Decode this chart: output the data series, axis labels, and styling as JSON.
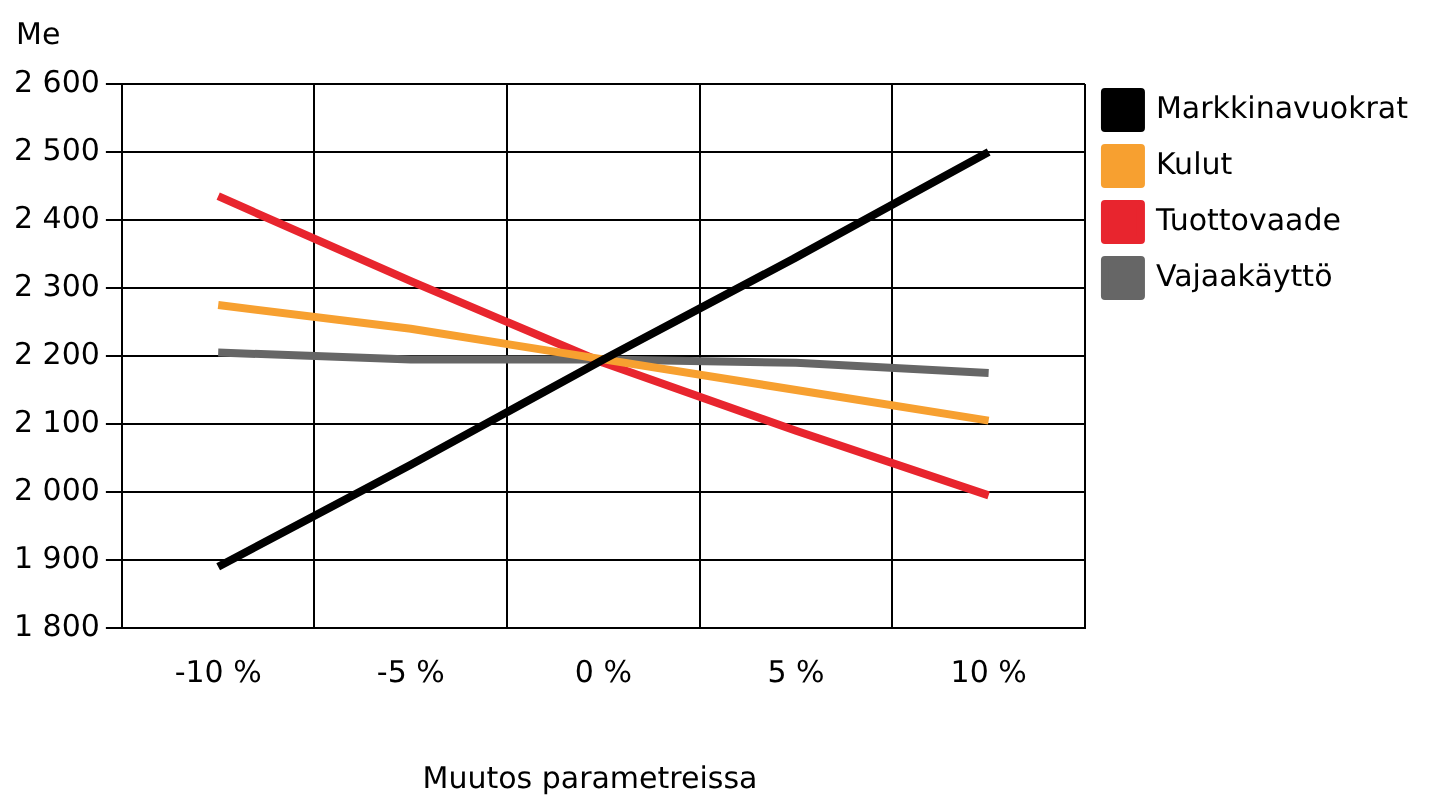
{
  "chart_data": {
    "type": "line",
    "xlabel": "Muutos parametreissa",
    "ylabel": "Me",
    "categories": [
      "-10 %",
      "-5 %",
      "0 %",
      "5 %",
      "10 %"
    ],
    "series": [
      {
        "name": "Markkinavuokrat",
        "color": "#000000",
        "values": [
          1890,
          2040,
          2195,
          2345,
          2500
        ]
      },
      {
        "name": "Kulut",
        "color": "#f7a030",
        "values": [
          2275,
          2240,
          2195,
          2150,
          2105
        ]
      },
      {
        "name": "Tuottovaade",
        "color": "#e8252e",
        "values": [
          2435,
          2310,
          2190,
          2090,
          1995
        ]
      },
      {
        "name": "Vajaakäyttö",
        "color": "#666666",
        "values": [
          2205,
          2195,
          2195,
          2190,
          2175
        ]
      }
    ],
    "ylim": [
      1800,
      2600
    ],
    "yticks": [
      {
        "value": 1800,
        "label": "1 800"
      },
      {
        "value": 1900,
        "label": "1 900"
      },
      {
        "value": 2000,
        "label": "2 000"
      },
      {
        "value": 2100,
        "label": "2 100"
      },
      {
        "value": 2200,
        "label": "2 200"
      },
      {
        "value": 2300,
        "label": "2 300"
      },
      {
        "value": 2400,
        "label": "2 400"
      },
      {
        "value": 2500,
        "label": "2 500"
      },
      {
        "value": 2600,
        "label": "2 600"
      }
    ],
    "grid": true,
    "legend": "right",
    "marker": "none"
  }
}
